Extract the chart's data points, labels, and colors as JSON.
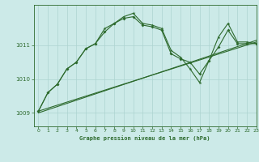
{
  "title": "Graphe pression niveau de la mer (hPa)",
  "background_color": "#cceae8",
  "grid_color": "#add4d0",
  "line_color": "#2d6a2d",
  "xlim": [
    -0.5,
    23
  ],
  "ylim": [
    1008.6,
    1012.2
  ],
  "yticks": [
    1009,
    1010,
    1011
  ],
  "xticks": [
    0,
    1,
    2,
    3,
    4,
    5,
    6,
    7,
    8,
    9,
    10,
    11,
    12,
    13,
    14,
    15,
    16,
    17,
    18,
    19,
    20,
    21,
    22,
    23
  ],
  "trend1_x": [
    0,
    23
  ],
  "trend1_y": [
    1009.0,
    1011.15
  ],
  "trend2_x": [
    0,
    23
  ],
  "trend2_y": [
    1009.05,
    1011.1
  ],
  "wave1_x": [
    0,
    1,
    2,
    3,
    4,
    5,
    6,
    7,
    8,
    9,
    10,
    11,
    12,
    13,
    14,
    15,
    16,
    17,
    18,
    19,
    20,
    21,
    22,
    23
  ],
  "wave1_y": [
    1009.05,
    1009.6,
    1009.85,
    1010.3,
    1010.5,
    1010.9,
    1011.05,
    1011.4,
    1011.65,
    1011.8,
    1011.85,
    1011.6,
    1011.55,
    1011.45,
    1010.75,
    1010.6,
    1010.5,
    1010.15,
    1010.55,
    1010.95,
    1011.45,
    1011.05,
    1011.05,
    1011.05
  ],
  "wave2_x": [
    0,
    1,
    2,
    3,
    4,
    5,
    6,
    7,
    8,
    9,
    10,
    11,
    12,
    13,
    14,
    15,
    16,
    17,
    18,
    19,
    20,
    21,
    22,
    23
  ],
  "wave2_y": [
    1009.05,
    1009.6,
    1009.85,
    1010.3,
    1010.5,
    1010.9,
    1011.05,
    1011.5,
    1011.65,
    1011.85,
    1011.95,
    1011.65,
    1011.6,
    1011.5,
    1010.85,
    1010.65,
    1010.3,
    1009.9,
    1010.55,
    1011.25,
    1011.65,
    1011.1,
    1011.1,
    1011.05
  ],
  "figwidth": 3.2,
  "figheight": 2.0,
  "dpi": 100
}
